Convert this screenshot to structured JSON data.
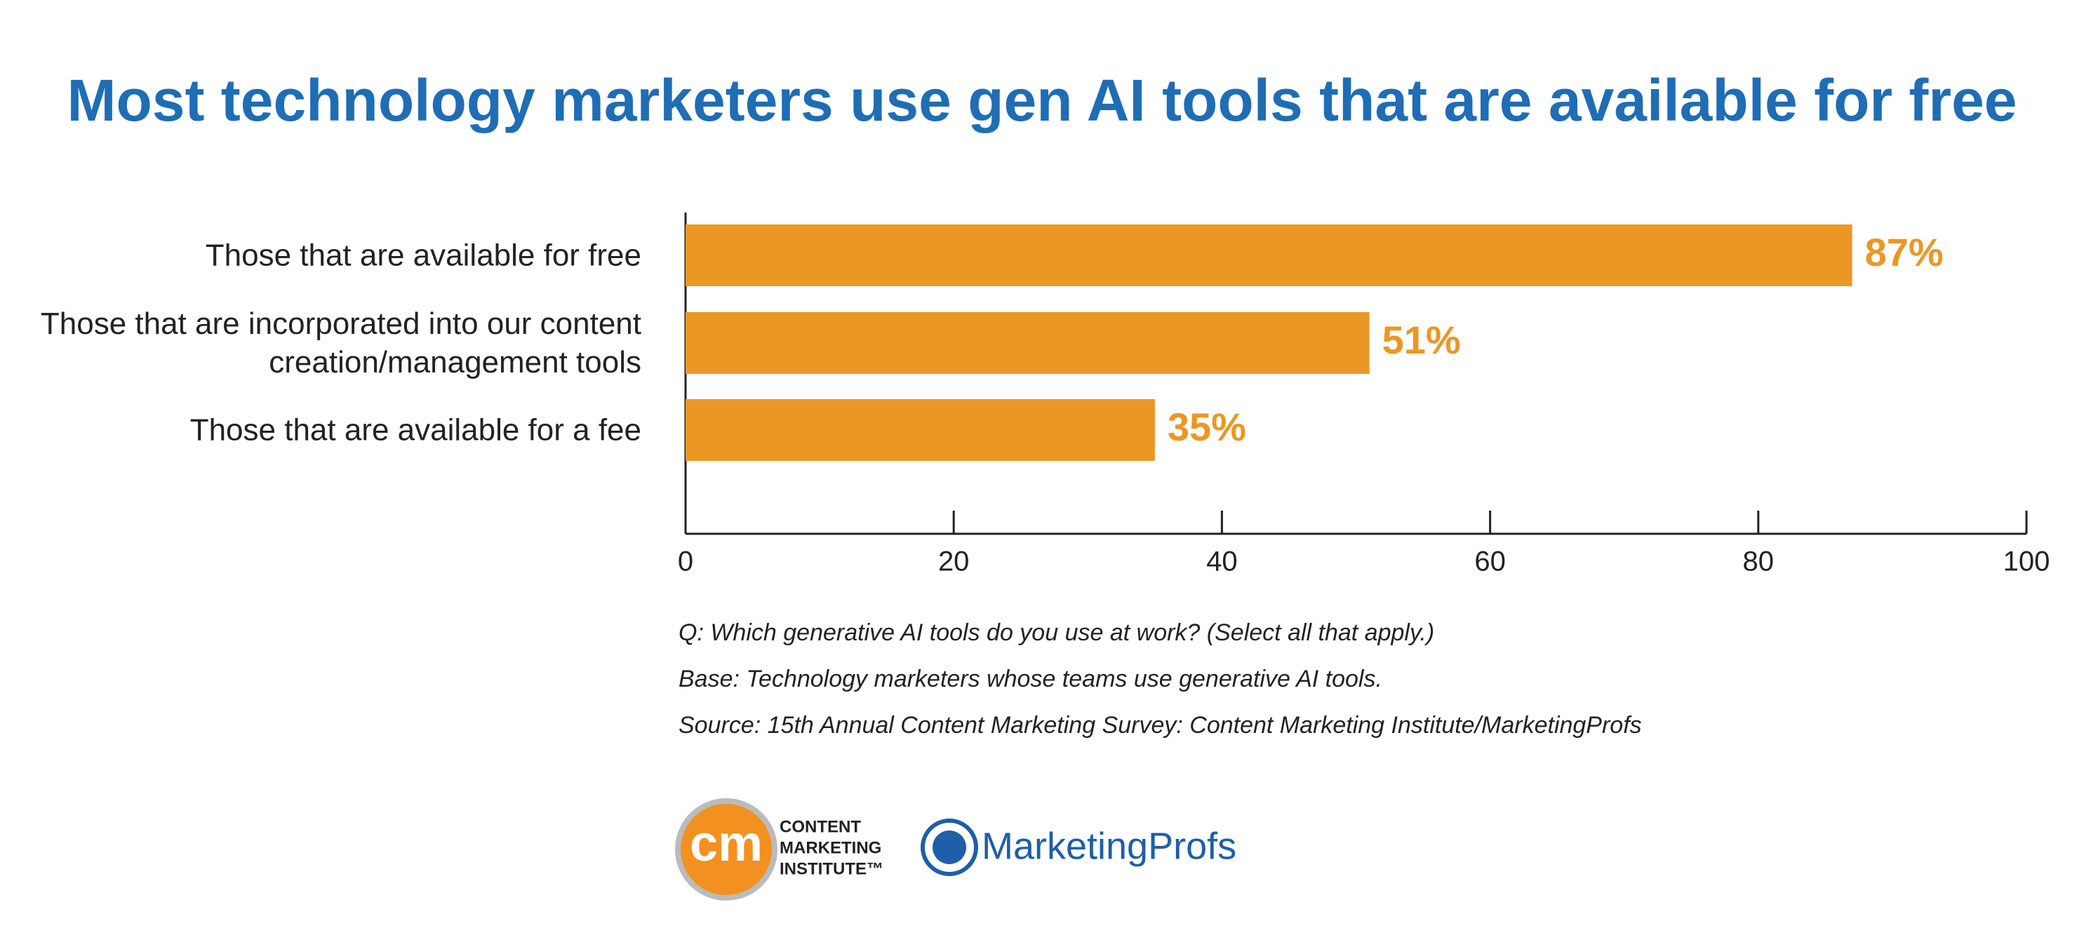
{
  "chart_data": {
    "type": "barh",
    "title": "Most technology marketers use gen AI tools that are available for free",
    "categories": [
      "Those that are available for free",
      "Those that are incorporated into our content creation/management tools",
      "Those that are available for a fee"
    ],
    "values": [
      87,
      51,
      35
    ],
    "value_labels": [
      "87%",
      "51%",
      "35%"
    ],
    "color": "#eb9726",
    "xlim": [
      0,
      100
    ],
    "xticks": [
      0,
      20,
      40,
      60,
      80,
      100
    ],
    "notes": [
      "Q: Which generative AI tools do you use at work? (Select all that apply.)",
      "Base: Technology marketers whose teams use generative AI tools.",
      "Source: 15th Annual Content Marketing Survey: Content Marketing Institute/MarketingProfs"
    ]
  },
  "logos": {
    "cmi": {
      "mark": "cm",
      "lines": [
        "CONTENT",
        "MARKETING",
        "INSTITUTE™"
      ]
    },
    "marketingprofs": "MarketingProfs"
  }
}
